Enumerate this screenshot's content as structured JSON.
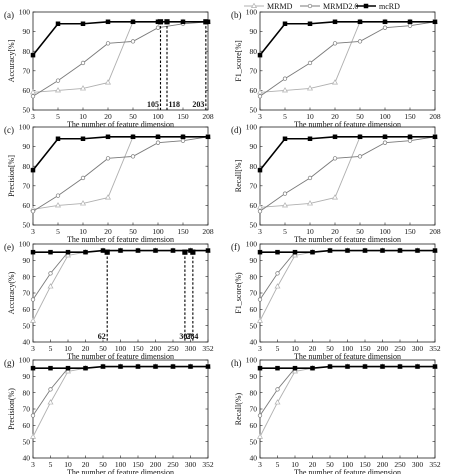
{
  "legend": {
    "placement": "top-center",
    "entries": [
      "MRMD",
      "MRMD2.0",
      "mcRD"
    ]
  },
  "colors": {
    "MRMD": "#b0b0b0",
    "MRMD2.0": "#7a7a7a",
    "mcRD": "#000000"
  },
  "chart_data": [
    {
      "type": "line",
      "panel_label": "(a)",
      "xlabel": "The number of feature dimension",
      "ylabel": "Accuracy[%]",
      "ylim": [
        50,
        100
      ],
      "yticks": [
        50,
        60,
        70,
        80,
        90,
        100
      ],
      "x": [
        "3",
        "5",
        "10",
        "20",
        "50",
        "100",
        "150",
        "208"
      ],
      "series": [
        {
          "name": "MRMD",
          "values": [
            59,
            60,
            61,
            64,
            95,
            95,
            95,
            95
          ]
        },
        {
          "name": "MRMD2.0",
          "values": [
            57,
            65,
            74,
            84,
            85,
            92,
            94,
            95
          ]
        },
        {
          "name": "mcRD",
          "values": [
            78,
            94,
            94,
            95,
            95,
            95,
            95,
            95
          ]
        }
      ],
      "markers": [
        {
          "x_value": 105,
          "label": "105"
        },
        {
          "x_value": 118,
          "label": "118"
        },
        {
          "x_value": 203,
          "label": "203"
        }
      ]
    },
    {
      "type": "line",
      "panel_label": "(b)",
      "xlabel": "The number of feature dimension",
      "ylabel": "F1_score[%]",
      "ylim": [
        50,
        100
      ],
      "yticks": [
        50,
        60,
        70,
        80,
        90,
        100
      ],
      "x": [
        "3",
        "5",
        "10",
        "20",
        "50",
        "100",
        "150",
        "208"
      ],
      "series": [
        {
          "name": "MRMD",
          "values": [
            59,
            60,
            61,
            64,
            95,
            95,
            95,
            95
          ]
        },
        {
          "name": "MRMD2.0",
          "values": [
            57,
            66,
            74,
            84,
            85,
            92,
            93,
            95
          ]
        },
        {
          "name": "mcRD",
          "values": [
            78,
            94,
            94,
            95,
            95,
            95,
            95,
            95
          ]
        }
      ],
      "markers": []
    },
    {
      "type": "line",
      "panel_label": "(c)",
      "xlabel": "The number of feature dimension",
      "ylabel": "Precision[%]",
      "ylim": [
        50,
        100
      ],
      "yticks": [
        50,
        60,
        70,
        80,
        90,
        100
      ],
      "x": [
        "3",
        "5",
        "10",
        "20",
        "50",
        "100",
        "150",
        "208"
      ],
      "series": [
        {
          "name": "MRMD",
          "values": [
            58,
            60,
            61,
            64,
            95,
            95,
            95,
            95
          ]
        },
        {
          "name": "MRMD2.0",
          "values": [
            57,
            65,
            74,
            84,
            85,
            92,
            93,
            95
          ]
        },
        {
          "name": "mcRD",
          "values": [
            78,
            94,
            94,
            95,
            95,
            95,
            95,
            95
          ]
        }
      ],
      "markers": []
    },
    {
      "type": "line",
      "panel_label": "(d)",
      "xlabel": "The number of feature dimension",
      "ylabel": "Recall[%]",
      "ylim": [
        50,
        100
      ],
      "yticks": [
        50,
        60,
        70,
        80,
        90,
        100
      ],
      "x": [
        "3",
        "5",
        "10",
        "20",
        "50",
        "100",
        "150",
        "208"
      ],
      "series": [
        {
          "name": "MRMD",
          "values": [
            59,
            60,
            61,
            64,
            95,
            95,
            95,
            95
          ]
        },
        {
          "name": "MRMD2.0",
          "values": [
            57,
            66,
            74,
            84,
            85,
            92,
            93,
            95
          ]
        },
        {
          "name": "mcRD",
          "values": [
            78,
            94,
            94,
            95,
            95,
            95,
            95,
            95
          ]
        }
      ],
      "markers": []
    },
    {
      "type": "line",
      "panel_label": "(e)",
      "xlabel": "The number of feature dimension",
      "ylabel": "Accuracy(%)",
      "ylim": [
        40,
        100
      ],
      "yticks": [
        40,
        50,
        60,
        70,
        80,
        90,
        100
      ],
      "x": [
        "3",
        "5",
        "10",
        "20",
        "50",
        "100",
        "150",
        "200",
        "250",
        "300",
        "352"
      ],
      "series": [
        {
          "name": "MRMD",
          "values": [
            53,
            74,
            93,
            95,
            96,
            96,
            96,
            96,
            96,
            96,
            96
          ]
        },
        {
          "name": "MRMD2.0",
          "values": [
            66,
            82,
            95,
            95,
            96,
            96,
            96,
            96,
            96,
            96,
            96
          ]
        },
        {
          "name": "mcRD",
          "values": [
            95,
            95,
            95,
            95,
            96,
            96,
            96,
            96,
            96,
            96,
            96
          ]
        }
      ],
      "markers": [
        {
          "x_value": 62,
          "label": "62"
        },
        {
          "x_value": 284,
          "label": "284"
        },
        {
          "x_value": 307,
          "label": "307"
        }
      ]
    },
    {
      "type": "line",
      "panel_label": "(f)",
      "xlabel": "The number of feature dimension",
      "ylabel": "F1_score(%)",
      "ylim": [
        40,
        100
      ],
      "yticks": [
        40,
        50,
        60,
        70,
        80,
        90,
        100
      ],
      "x": [
        "3",
        "5",
        "10",
        "20",
        "50",
        "100",
        "150",
        "200",
        "250",
        "300",
        "352"
      ],
      "series": [
        {
          "name": "MRMD",
          "values": [
            53,
            74,
            93,
            95,
            96,
            96,
            96,
            96,
            96,
            96,
            96
          ]
        },
        {
          "name": "MRMD2.0",
          "values": [
            66,
            82,
            95,
            95,
            96,
            96,
            96,
            96,
            96,
            96,
            96
          ]
        },
        {
          "name": "mcRD",
          "values": [
            95,
            95,
            95,
            95,
            96,
            96,
            96,
            96,
            96,
            96,
            96
          ]
        }
      ],
      "markers": []
    },
    {
      "type": "line",
      "panel_label": "(g)",
      "xlabel": "The number of feature dimension",
      "ylabel": "Precision(%)",
      "ylim": [
        40,
        100
      ],
      "yticks": [
        40,
        50,
        60,
        70,
        80,
        90,
        100
      ],
      "x": [
        "3",
        "5",
        "10",
        "20",
        "50",
        "100",
        "150",
        "200",
        "250",
        "300",
        "352"
      ],
      "series": [
        {
          "name": "MRMD",
          "values": [
            53,
            74,
            93,
            95,
            96,
            96,
            96,
            96,
            96,
            96,
            96
          ]
        },
        {
          "name": "MRMD2.0",
          "values": [
            66,
            82,
            95,
            95,
            96,
            96,
            96,
            96,
            96,
            96,
            96
          ]
        },
        {
          "name": "mcRD",
          "values": [
            95,
            95,
            95,
            95,
            96,
            96,
            96,
            96,
            96,
            96,
            96
          ]
        }
      ],
      "markers": []
    },
    {
      "type": "line",
      "panel_label": "(h)",
      "xlabel": "The number of feature dimension",
      "ylabel": "Recall(%)",
      "ylim": [
        40,
        100
      ],
      "yticks": [
        40,
        50,
        60,
        70,
        80,
        90,
        100
      ],
      "x": [
        "3",
        "5",
        "10",
        "20",
        "50",
        "100",
        "150",
        "200",
        "250",
        "300",
        "352"
      ],
      "series": [
        {
          "name": "MRMD",
          "values": [
            53,
            74,
            93,
            95,
            96,
            96,
            96,
            96,
            96,
            96,
            96
          ]
        },
        {
          "name": "MRMD2.0",
          "values": [
            66,
            82,
            95,
            95,
            96,
            96,
            96,
            96,
            96,
            96,
            96
          ]
        },
        {
          "name": "mcRD",
          "values": [
            95,
            95,
            95,
            95,
            96,
            96,
            96,
            96,
            96,
            96,
            96
          ]
        }
      ],
      "markers": []
    }
  ]
}
